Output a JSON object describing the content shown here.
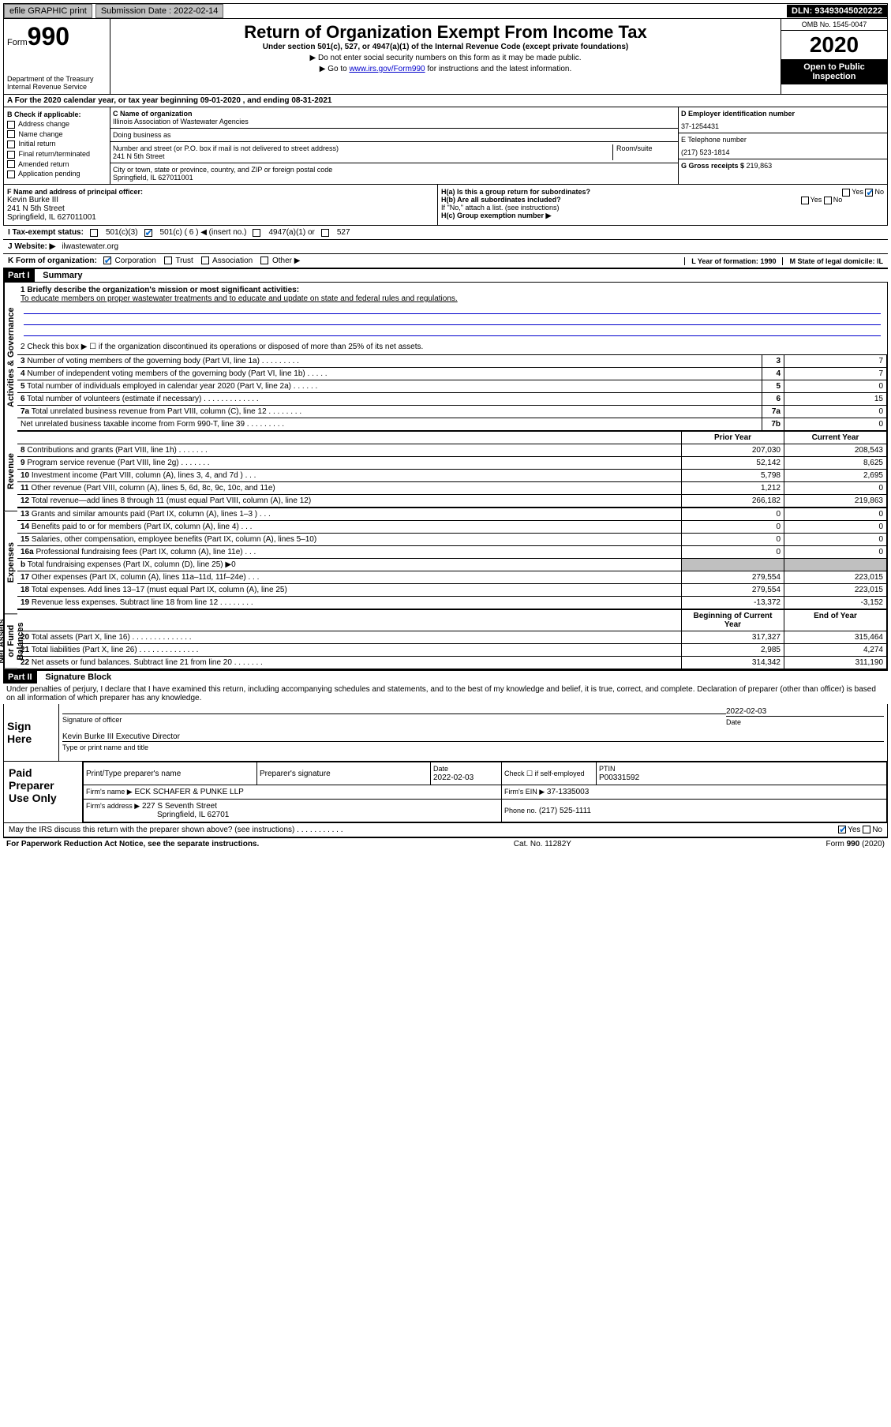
{
  "top_bar": {
    "efile": "efile GRAPHIC print",
    "sub_label": "Submission Date : 2022-02-14",
    "dln": "DLN: 93493045020222"
  },
  "header": {
    "form_word": "Form",
    "form_num": "990",
    "title": "Return of Organization Exempt From Income Tax",
    "subtitle": "Under section 501(c), 527, or 4947(a)(1) of the Internal Revenue Code (except private foundations)",
    "line1": "▶ Do not enter social security numbers on this form as it may be made public.",
    "line2_pre": "▶ Go to ",
    "line2_link": "www.irs.gov/Form990",
    "line2_post": " for instructions and the latest information.",
    "dept": "Department of the Treasury\nInternal Revenue Service",
    "omb": "OMB No. 1545-0047",
    "year": "2020",
    "inspect": "Open to Public Inspection"
  },
  "line_a": "A For the 2020 calendar year, or tax year beginning 09-01-2020    , and ending 08-31-2021",
  "box_b": {
    "title": "B Check if applicable:",
    "opts": [
      "Address change",
      "Name change",
      "Initial return",
      "Final return/terminated",
      "Amended return",
      "Application pending"
    ]
  },
  "box_c": {
    "name_label": "C Name of organization",
    "name": "Illinois Association of Wastewater Agencies",
    "dba_label": "Doing business as",
    "dba": "",
    "street_label": "Number and street (or P.O. box if mail is not delivered to street address)",
    "room_label": "Room/suite",
    "street": "241 N 5th Street",
    "city_label": "City or town, state or province, country, and ZIP or foreign postal code",
    "city": "Springfield, IL  627011001"
  },
  "box_d": {
    "ein_label": "D Employer identification number",
    "ein": "37-1254431",
    "phone_label": "E Telephone number",
    "phone": "(217) 523-1814",
    "gross_label": "G Gross receipts $ ",
    "gross": "219,863"
  },
  "box_f": {
    "label": "F  Name and address of principal officer:",
    "name": "Kevin Burke III",
    "street": "241 N 5th Street",
    "city": "Springfield, IL  627011001"
  },
  "box_h": {
    "ha": "H(a)  Is this a group return for subordinates?",
    "hb": "H(b)  Are all subordinates included?",
    "hb_note": "If \"No,\" attach a list. (see instructions)",
    "hc": "H(c)  Group exemption number ▶",
    "yes": "Yes",
    "no": "No"
  },
  "tax_exempt": {
    "label": "I    Tax-exempt status:",
    "o1": "501(c)(3)",
    "o2": "501(c) ( 6 ) ◀ (insert no.)",
    "o3": "4947(a)(1) or",
    "o4": "527"
  },
  "website": {
    "label": "J   Website: ▶ ",
    "value": "ilwastewater.org"
  },
  "line_k": {
    "label": "K Form of organization:",
    "opts": [
      "Corporation",
      "Trust",
      "Association",
      "Other ▶"
    ],
    "checked": 0,
    "l": "L Year of formation: 1990",
    "m": "M State of legal domicile: IL"
  },
  "part1": {
    "num": "Part I",
    "title": "Summary"
  },
  "summary": {
    "vert_labels": [
      "Activities & Governance",
      "Revenue",
      "Expenses",
      "Net Assets or Fund Balances"
    ],
    "q1": "1   Briefly describe the organization's mission or most significant activities:",
    "mission": "To educate members on proper wastewater treatments and to educate and update on state and federal rules and regulations.",
    "q2": "2   Check this box ▶ ☐  if the organization discontinued its operations or disposed of more than 25% of its net assets.",
    "rows_gov": [
      {
        "n": "3",
        "t": "Number of voting members of the governing body (Part VI, line 1a)   .    .    .    .    .    .    .    .    .",
        "box": "3",
        "v": "7"
      },
      {
        "n": "4",
        "t": "Number of independent voting members of the governing body (Part VI, line 1b)   .    .    .    .    .",
        "box": "4",
        "v": "7"
      },
      {
        "n": "5",
        "t": "Total number of individuals employed in calendar year 2020 (Part V, line 2a)   .    .    .    .    .    .",
        "box": "5",
        "v": "0"
      },
      {
        "n": "6",
        "t": "Total number of volunteers (estimate if necessary)   .    .    .    .    .    .    .    .    .    .    .    .    .",
        "box": "6",
        "v": "15"
      },
      {
        "n": "7a",
        "t": "Total unrelated business revenue from Part VIII, column (C), line 12   .    .    .    .    .    .    .    .",
        "box": "7a",
        "v": "0"
      },
      {
        "n": "",
        "t": "Net unrelated business taxable income from Form 990-T, line 39   .    .    .    .    .    .    .    .    .",
        "box": "7b",
        "v": "0"
      }
    ],
    "col_hdr_prior": "Prior Year",
    "col_hdr_curr": "Current Year",
    "rows_rev": [
      {
        "n": "8",
        "t": "Contributions and grants (Part VIII, line 1h)   .    .    .    .    .    .    .",
        "p": "207,030",
        "c": "208,543"
      },
      {
        "n": "9",
        "t": "Program service revenue (Part VIII, line 2g)   .    .    .    .    .    .    .",
        "p": "52,142",
        "c": "8,625"
      },
      {
        "n": "10",
        "t": "Investment income (Part VIII, column (A), lines 3, 4, and 7d )   .    .    .",
        "p": "5,798",
        "c": "2,695"
      },
      {
        "n": "11",
        "t": "Other revenue (Part VIII, column (A), lines 5, 6d, 8c, 9c, 10c, and 11e)",
        "p": "1,212",
        "c": "0"
      },
      {
        "n": "12",
        "t": "Total revenue—add lines 8 through 11 (must equal Part VIII, column (A), line 12)",
        "p": "266,182",
        "c": "219,863"
      }
    ],
    "rows_exp": [
      {
        "n": "13",
        "t": "Grants and similar amounts paid (Part IX, column (A), lines 1–3 )   .    .    .",
        "p": "0",
        "c": "0"
      },
      {
        "n": "14",
        "t": "Benefits paid to or for members (Part IX, column (A), line 4)   .    .    .",
        "p": "0",
        "c": "0"
      },
      {
        "n": "15",
        "t": "Salaries, other compensation, employee benefits (Part IX, column (A), lines 5–10)",
        "p": "0",
        "c": "0"
      },
      {
        "n": "16a",
        "t": "Professional fundraising fees (Part IX, column (A), line 11e)   .    .    .",
        "p": "0",
        "c": "0"
      },
      {
        "n": "b",
        "t": "Total fundraising expenses (Part IX, column (D), line 25)  ▶0",
        "p": "",
        "c": "",
        "grey": true
      },
      {
        "n": "17",
        "t": "Other expenses (Part IX, column (A), lines 11a–11d, 11f–24e)   .    .    .",
        "p": "279,554",
        "c": "223,015"
      },
      {
        "n": "18",
        "t": "Total expenses. Add lines 13–17 (must equal Part IX, column (A), line 25)",
        "p": "279,554",
        "c": "223,015"
      },
      {
        "n": "19",
        "t": "Revenue less expenses. Subtract line 18 from line 12   .    .    .    .    .    .    .    .",
        "p": "-13,372",
        "c": "-3,152"
      }
    ],
    "col_hdr_beg": "Beginning of Current Year",
    "col_hdr_end": "End of Year",
    "rows_net": [
      {
        "n": "20",
        "t": "Total assets (Part X, line 16)   .    .    .    .    .    .    .    .    .    .    .    .    .    .",
        "p": "317,327",
        "c": "315,464"
      },
      {
        "n": "21",
        "t": "Total liabilities (Part X, line 26)   .    .    .    .    .    .    .    .    .    .    .    .    .    .",
        "p": "2,985",
        "c": "4,274"
      },
      {
        "n": "22",
        "t": "Net assets or fund balances. Subtract line 21 from line 20   .    .    .    .    .    .    .",
        "p": "314,342",
        "c": "311,190"
      }
    ]
  },
  "part2": {
    "num": "Part II",
    "title": "Signature Block"
  },
  "penalty": "Under penalties of perjury, I declare that I have examined this return, including accompanying schedules and statements, and to the best of my knowledge and belief, it is true, correct, and complete. Declaration of preparer (other than officer) is based on all information of which preparer has any knowledge.",
  "sign": {
    "here": "Sign Here",
    "sig_label": "Signature of officer",
    "date_label": "Date",
    "date": "2022-02-03",
    "name": "Kevin Burke III  Executive Director",
    "name_label": "Type or print name and title"
  },
  "prep": {
    "title": "Paid Preparer Use Only",
    "h1": "Print/Type preparer's name",
    "h2": "Preparer's signature",
    "h3": "Date",
    "date": "2022-02-03",
    "h4": "Check ☐ if self-employed",
    "h5": "PTIN",
    "ptin": "P00331592",
    "firm_label": "Firm's name     ▶",
    "firm": "ECK SCHAFER & PUNKE LLP",
    "ein_label": "Firm's EIN ▶",
    "ein": "37-1335003",
    "addr_label": "Firm's address ▶",
    "addr1": "227 S Seventh Street",
    "addr2": "Springfield, IL  62701",
    "phone_label": "Phone no.",
    "phone": "(217) 525-1111"
  },
  "discuss": {
    "text": "May the IRS discuss this return with the preparer shown above? (see instructions)    .    .    .    .    .    .    .    .    .    .    .",
    "yes": "Yes",
    "no": "No"
  },
  "footer": {
    "left": "For Paperwork Reduction Act Notice, see the separate instructions.",
    "mid": "Cat. No. 11282Y",
    "right": "Form 990 (2020)"
  },
  "colors": {
    "link": "#0000cc",
    "black": "#000000",
    "grey": "#c0c0c0"
  }
}
